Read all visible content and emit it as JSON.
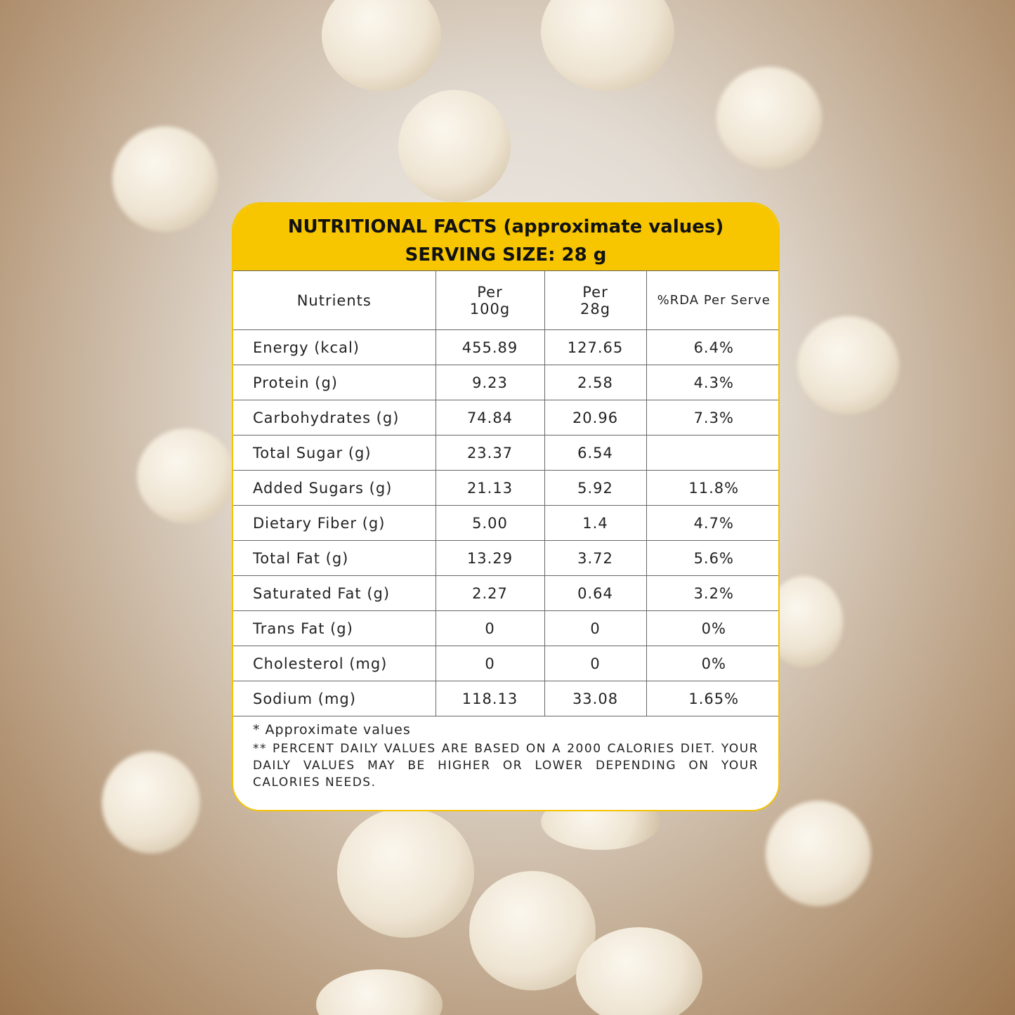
{
  "header": {
    "title": "NUTRITIONAL FACTS (approximate values)",
    "serving": "SERVING SIZE: 28 g"
  },
  "table": {
    "columns": [
      "Nutrients",
      "Per 100g",
      "Per 28g",
      "%RDA Per Serve"
    ],
    "rows": [
      [
        "Energy (kcal)",
        "455.89",
        "127.65",
        "6.4%"
      ],
      [
        "Protein (g)",
        "9.23",
        "2.58",
        "4.3%"
      ],
      [
        "Carbohydrates (g)",
        "74.84",
        "20.96",
        "7.3%"
      ],
      [
        "Total Sugar (g)",
        "23.37",
        "6.54",
        null
      ],
      [
        "Added Sugars (g)",
        "21.13",
        "5.92",
        "11.8%"
      ],
      [
        "Dietary Fiber (g)",
        "5.00",
        "1.4",
        "4.7%"
      ],
      [
        "Total Fat (g)",
        "13.29",
        "3.72",
        "5.6%"
      ],
      [
        "Saturated Fat (g)",
        "2.27",
        "0.64",
        "3.2%"
      ],
      [
        "Trans Fat (g)",
        "0",
        "0",
        "0%"
      ],
      [
        "Cholesterol (mg)",
        "0",
        "0",
        "0%"
      ],
      [
        "Sodium  (mg)",
        "118.13",
        "33.08",
        "1.65%"
      ]
    ]
  },
  "footnotes": [
    "* Approximate values",
    "** PERCENT DAILY VALUES ARE BASED ON A 2000 CALORIES DIET. YOUR DAILY VALUES MAY BE HIGHER OR LOWER DEPENDING ON YOUR CALORIES NEEDS."
  ]
}
